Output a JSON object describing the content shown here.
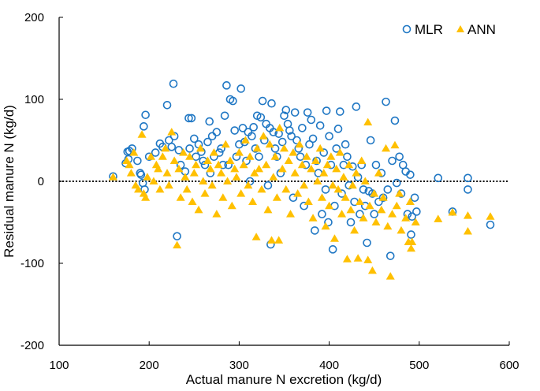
{
  "chart_data": {
    "type": "scatter",
    "title": "",
    "xlabel": "Actual manure N excretion (kg/d)",
    "ylabel": "Residual manure N (kg/d)",
    "xlim": [
      100,
      600
    ],
    "ylim": [
      -200,
      200
    ],
    "xticks": [
      "100",
      "200",
      "300",
      "400",
      "500",
      "600"
    ],
    "yticks": [
      "200",
      "100",
      "0",
      "-100",
      "-200"
    ],
    "xtick_values": [
      100,
      200,
      300,
      400,
      500,
      600
    ],
    "ytick_values": [
      200,
      100,
      0,
      -100,
      -200
    ],
    "grid": false,
    "reference_line": {
      "y": 0,
      "style": "dotted"
    },
    "legend_position": "top-right",
    "series": [
      {
        "name": "MLR",
        "marker": "open-circle",
        "color": "#1f77c4",
        "points": [
          [
            160,
            6
          ],
          [
            176,
            36
          ],
          [
            178,
            37
          ],
          [
            181,
            40
          ],
          [
            177,
            27
          ],
          [
            174,
            22
          ],
          [
            187,
            25
          ],
          [
            190,
            10
          ],
          [
            194,
            67
          ],
          [
            196,
            81
          ],
          [
            191,
            8
          ],
          [
            193,
            -2
          ],
          [
            195,
            -10
          ],
          [
            200,
            30
          ],
          [
            207,
            35
          ],
          [
            212,
            46
          ],
          [
            215,
            42
          ],
          [
            220,
            93
          ],
          [
            222,
            50
          ],
          [
            225,
            42
          ],
          [
            227,
            119
          ],
          [
            228,
            55
          ],
          [
            231,
            -67
          ],
          [
            233,
            38
          ],
          [
            235,
            20
          ],
          [
            240,
            12
          ],
          [
            244,
            77
          ],
          [
            247,
            77
          ],
          [
            245,
            40
          ],
          [
            250,
            52
          ],
          [
            252,
            30
          ],
          [
            255,
            45
          ],
          [
            258,
            36
          ],
          [
            260,
            25
          ],
          [
            262,
            20
          ],
          [
            265,
            48
          ],
          [
            267,
            73
          ],
          [
            268,
            10
          ],
          [
            270,
            55
          ],
          [
            272,
            30
          ],
          [
            275,
            60
          ],
          [
            278,
            35
          ],
          [
            280,
            40
          ],
          [
            282,
            20
          ],
          [
            284,
            80
          ],
          [
            286,
            117
          ],
          [
            288,
            20
          ],
          [
            290,
            100
          ],
          [
            293,
            98
          ],
          [
            295,
            62
          ],
          [
            297,
            30
          ],
          [
            300,
            45
          ],
          [
            302,
            113
          ],
          [
            304,
            65
          ],
          [
            306,
            48
          ],
          [
            308,
            25
          ],
          [
            310,
            60
          ],
          [
            312,
            0
          ],
          [
            314,
            55
          ],
          [
            316,
            66
          ],
          [
            318,
            40
          ],
          [
            320,
            80
          ],
          [
            322,
            30
          ],
          [
            324,
            78
          ],
          [
            326,
            98
          ],
          [
            328,
            50
          ],
          [
            330,
            70
          ],
          [
            332,
            -5
          ],
          [
            334,
            65
          ],
          [
            335,
            -77
          ],
          [
            336,
            95
          ],
          [
            338,
            60
          ],
          [
            340,
            40
          ],
          [
            342,
            30
          ],
          [
            344,
            58
          ],
          [
            346,
            10
          ],
          [
            348,
            48
          ],
          [
            350,
            80
          ],
          [
            352,
            87
          ],
          [
            354,
            70
          ],
          [
            356,
            62
          ],
          [
            358,
            55
          ],
          [
            360,
            -20
          ],
          [
            362,
            84
          ],
          [
            364,
            50
          ],
          [
            366,
            40
          ],
          [
            368,
            30
          ],
          [
            370,
            65
          ],
          [
            372,
            -30
          ],
          [
            374,
            20
          ],
          [
            376,
            84
          ],
          [
            378,
            45
          ],
          [
            380,
            75
          ],
          [
            382,
            52
          ],
          [
            384,
            -60
          ],
          [
            386,
            25
          ],
          [
            388,
            10
          ],
          [
            390,
            68
          ],
          [
            392,
            -40
          ],
          [
            394,
            35
          ],
          [
            396,
            -10
          ],
          [
            397,
            86
          ],
          [
            399,
            -50
          ],
          [
            400,
            55
          ],
          [
            402,
            20
          ],
          [
            404,
            -83
          ],
          [
            406,
            -30
          ],
          [
            408,
            40
          ],
          [
            410,
            64
          ],
          [
            412,
            85
          ],
          [
            414,
            -15
          ],
          [
            416,
            20
          ],
          [
            418,
            45
          ],
          [
            420,
            30
          ],
          [
            422,
            -5
          ],
          [
            424,
            -50
          ],
          [
            426,
            18
          ],
          [
            428,
            -25
          ],
          [
            430,
            91
          ],
          [
            432,
            5
          ],
          [
            434,
            -40
          ],
          [
            436,
            20
          ],
          [
            438,
            -10
          ],
          [
            440,
            -30
          ],
          [
            442,
            -75
          ],
          [
            444,
            -12
          ],
          [
            446,
            50
          ],
          [
            448,
            -15
          ],
          [
            450,
            -40
          ],
          [
            452,
            20
          ],
          [
            455,
            -25
          ],
          [
            458,
            10
          ],
          [
            460,
            -20
          ],
          [
            463,
            97
          ],
          [
            465,
            -10
          ],
          [
            468,
            -91
          ],
          [
            470,
            25
          ],
          [
            473,
            74
          ],
          [
            475,
            -2
          ],
          [
            478,
            30
          ],
          [
            480,
            -15
          ],
          [
            482,
            20
          ],
          [
            485,
            12
          ],
          [
            487,
            -40
          ],
          [
            490,
            8
          ],
          [
            491,
            -65
          ],
          [
            492,
            -43
          ],
          [
            495,
            -20
          ],
          [
            497,
            -37
          ],
          [
            521,
            4
          ],
          [
            537,
            -37
          ],
          [
            554,
            4
          ],
          [
            554,
            -10
          ],
          [
            579,
            -53
          ]
        ]
      },
      {
        "name": "ANN",
        "marker": "filled-triangle",
        "color": "#ffc000",
        "points": [
          [
            160,
            5
          ],
          [
            175,
            25
          ],
          [
            178,
            20
          ],
          [
            180,
            10
          ],
          [
            183,
            35
          ],
          [
            185,
            -5
          ],
          [
            188,
            -10
          ],
          [
            192,
            57
          ],
          [
            194,
            -15
          ],
          [
            196,
            -20
          ],
          [
            198,
            5
          ],
          [
            202,
            30
          ],
          [
            205,
            0
          ],
          [
            208,
            20
          ],
          [
            210,
            15
          ],
          [
            212,
            -10
          ],
          [
            215,
            30
          ],
          [
            218,
            40
          ],
          [
            220,
            10
          ],
          [
            222,
            -5
          ],
          [
            225,
            60
          ],
          [
            228,
            25
          ],
          [
            231,
            -78
          ],
          [
            233,
            15
          ],
          [
            235,
            -20
          ],
          [
            238,
            35
          ],
          [
            240,
            5
          ],
          [
            242,
            -10
          ],
          [
            245,
            30
          ],
          [
            248,
            -25
          ],
          [
            250,
            10
          ],
          [
            252,
            20
          ],
          [
            255,
            -35
          ],
          [
            257,
            40
          ],
          [
            260,
            0
          ],
          [
            262,
            -15
          ],
          [
            265,
            25
          ],
          [
            268,
            15
          ],
          [
            270,
            -5
          ],
          [
            272,
            35
          ],
          [
            275,
            -40
          ],
          [
            277,
            20
          ],
          [
            280,
            10
          ],
          [
            282,
            -20
          ],
          [
            285,
            45
          ],
          [
            287,
            0
          ],
          [
            290,
            25
          ],
          [
            292,
            -30
          ],
          [
            295,
            15
          ],
          [
            297,
            5
          ],
          [
            300,
            35
          ],
          [
            302,
            -15
          ],
          [
            305,
            20
          ],
          [
            307,
            50
          ],
          [
            310,
            -5
          ],
          [
            312,
            30
          ],
          [
            315,
            -25
          ],
          [
            317,
            10
          ],
          [
            319,
            -68
          ],
          [
            320,
            40
          ],
          [
            322,
            15
          ],
          [
            325,
            -10
          ],
          [
            327,
            55
          ],
          [
            330,
            20
          ],
          [
            332,
            -35
          ],
          [
            334,
            45
          ],
          [
            336,
            -72
          ],
          [
            338,
            5
          ],
          [
            340,
            30
          ],
          [
            342,
            -20
          ],
          [
            344,
            -72
          ],
          [
            345,
            65
          ],
          [
            348,
            15
          ],
          [
            350,
            40
          ],
          [
            352,
            -10
          ],
          [
            355,
            25
          ],
          [
            357,
            -40
          ],
          [
            360,
            35
          ],
          [
            362,
            10
          ],
          [
            365,
            -15
          ],
          [
            367,
            45
          ],
          [
            370,
            20
          ],
          [
            372,
            -5
          ],
          [
            375,
            30
          ],
          [
            377,
            -25
          ],
          [
            380,
            15
          ],
          [
            382,
            -45
          ],
          [
            385,
            25
          ],
          [
            387,
            0
          ],
          [
            390,
            40
          ],
          [
            392,
            -20
          ],
          [
            394,
            10
          ],
          [
            396,
            -55
          ],
          [
            398,
            20
          ],
          [
            400,
            -30
          ],
          [
            402,
            30
          ],
          [
            404,
            -5
          ],
          [
            406,
            -70
          ],
          [
            408,
            15
          ],
          [
            410,
            -10
          ],
          [
            412,
            35
          ],
          [
            414,
            -40
          ],
          [
            416,
            5
          ],
          [
            418,
            -20
          ],
          [
            420,
            -95
          ],
          [
            422,
            20
          ],
          [
            424,
            -35
          ],
          [
            426,
            -5
          ],
          [
            428,
            -60
          ],
          [
            430,
            10
          ],
          [
            432,
            -94
          ],
          [
            434,
            -25
          ],
          [
            436,
            25
          ],
          [
            438,
            -45
          ],
          [
            440,
            0
          ],
          [
            443,
            72
          ],
          [
            443,
            -96
          ],
          [
            445,
            -30
          ],
          [
            448,
            -109
          ],
          [
            450,
            -15
          ],
          [
            452,
            -50
          ],
          [
            455,
            10
          ],
          [
            458,
            -35
          ],
          [
            460,
            -20
          ],
          [
            463,
            40
          ],
          [
            465,
            -55
          ],
          [
            468,
            -116
          ],
          [
            470,
            -40
          ],
          [
            473,
            44
          ],
          [
            475,
            -30
          ],
          [
            478,
            -15
          ],
          [
            480,
            -60
          ],
          [
            485,
            -45
          ],
          [
            488,
            -74
          ],
          [
            490,
            -25
          ],
          [
            491,
            -82
          ],
          [
            492,
            -74
          ],
          [
            496,
            -50
          ],
          [
            521,
            -46
          ],
          [
            537,
            -38
          ],
          [
            554,
            -42
          ],
          [
            554,
            -61
          ],
          [
            579,
            -43
          ]
        ]
      }
    ]
  }
}
